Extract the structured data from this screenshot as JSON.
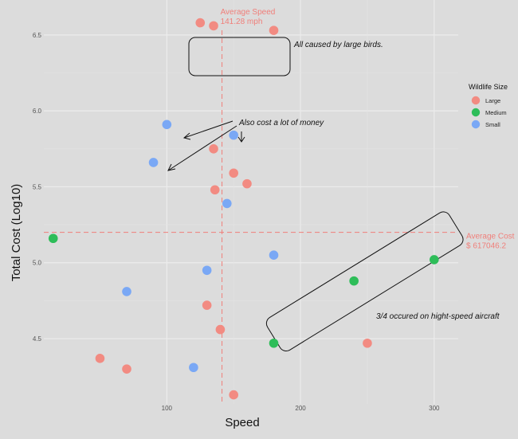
{
  "chart_data": {
    "type": "scatter",
    "xlabel": "Speed",
    "ylabel": "Total Cost (Log10)",
    "xlim": [
      8,
      318
    ],
    "ylim": [
      4.07,
      6.73
    ],
    "x_ticks": [
      100,
      200,
      300
    ],
    "y_ticks": [
      4.5,
      5.0,
      5.5,
      6.0,
      6.5
    ],
    "x_tick_labels": [
      "100",
      "200",
      "300"
    ],
    "y_tick_labels": [
      "4.5",
      "5.0",
      "5.5",
      "6.0",
      "6.5"
    ],
    "grid": true,
    "legend": {
      "title": "Wildlife Size",
      "placement": "right",
      "entries": [
        {
          "label": "Large",
          "color": "#f28b82"
        },
        {
          "label": "Medium",
          "color": "#2ebd59"
        },
        {
          "label": "Small",
          "color": "#7aa8f5"
        }
      ]
    },
    "series": [
      {
        "name": "Large",
        "color": "#f28b82",
        "points": [
          [
            125,
            6.58
          ],
          [
            135,
            6.56
          ],
          [
            180,
            6.53
          ],
          [
            135,
            5.75
          ],
          [
            150,
            5.59
          ],
          [
            160,
            5.52
          ],
          [
            136,
            5.48
          ],
          [
            130,
            4.72
          ],
          [
            140,
            4.56
          ],
          [
            50,
            4.37
          ],
          [
            70,
            4.3
          ],
          [
            250,
            4.47
          ],
          [
            150,
            4.13
          ]
        ]
      },
      {
        "name": "Medium",
        "color": "#2ebd59",
        "points": [
          [
            15,
            5.16
          ],
          [
            300,
            5.02
          ],
          [
            240,
            4.88
          ],
          [
            180,
            4.47
          ]
        ]
      },
      {
        "name": "Small",
        "color": "#7aa8f5",
        "points": [
          [
            100,
            5.91
          ],
          [
            150,
            5.84
          ],
          [
            90,
            5.66
          ],
          [
            145,
            5.39
          ],
          [
            180,
            5.05
          ],
          [
            130,
            4.95
          ],
          [
            70,
            4.81
          ],
          [
            120,
            4.31
          ]
        ]
      }
    ],
    "reference_lines": [
      {
        "axis": "x",
        "value": 141.28,
        "label_line1": "Average Speed",
        "label_line2": "141.28 mph",
        "color": "#f07f7a"
      },
      {
        "axis": "y",
        "value": 5.2,
        "label_line1": "Average Cost",
        "label_line2": "$ 617046.2",
        "color": "#f07f7a"
      }
    ],
    "annotations": [
      {
        "text": "All caused by large birds."
      },
      {
        "text": "Also cost a lot of money"
      },
      {
        "text": "3/4 occured on hight-speed aircraft"
      }
    ]
  }
}
